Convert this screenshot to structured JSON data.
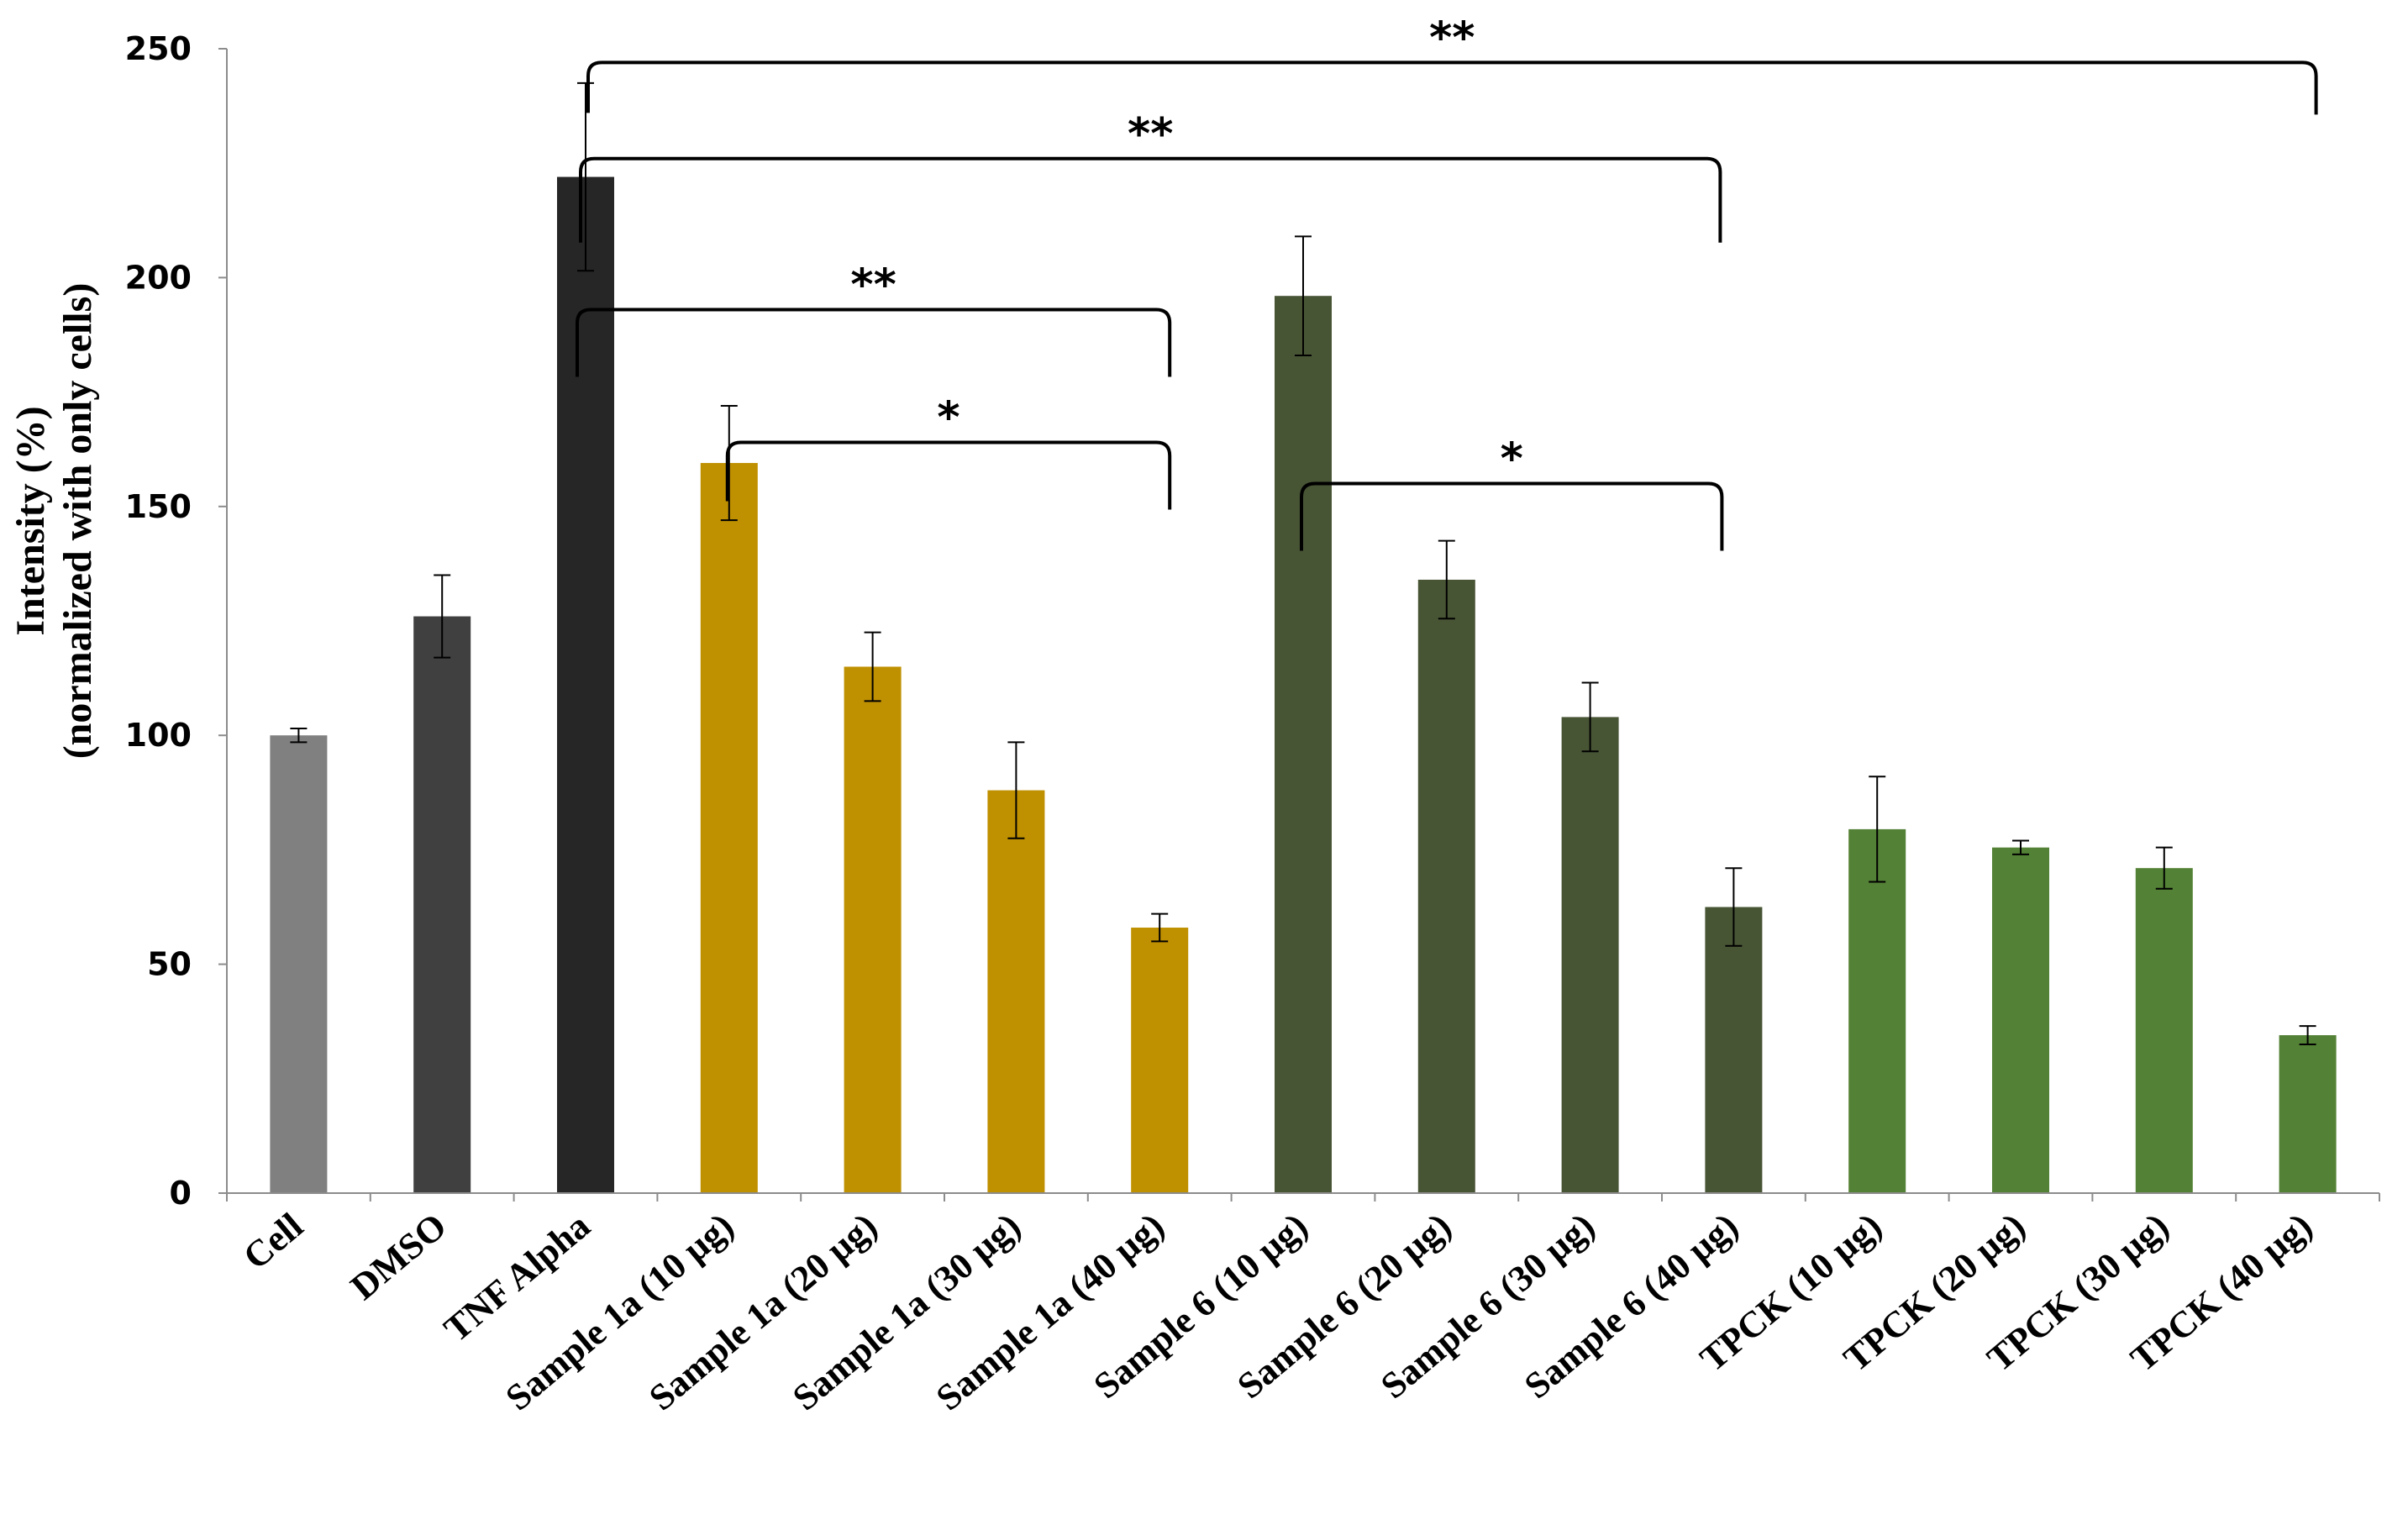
{
  "chart_data": {
    "type": "bar",
    "title": "",
    "xlabel": "",
    "ylabel": "Intensity (%)",
    "ylabel_sub": "(normalized with only cells)",
    "ylim": [
      0,
      250
    ],
    "yticks": [
      0,
      50,
      100,
      150,
      200,
      250
    ],
    "grid": false,
    "categories": [
      "Cell",
      "DMSO",
      "TNF Alpha",
      "Sample 1a (10 µg)",
      "Sample 1a (20 µg)",
      "Sample 1a (30 µg)",
      "Sample 1a (40 µg)",
      "Sample 6 (10 µg)",
      "Sample 6 (20 µg)",
      "Sample 6 (30 µg)",
      "Sample 6 (40 µg)",
      "TPCK (10 µg)",
      "TPCK (20 µg)",
      "TPCK (30 µg)",
      "TPCK (40 µg)"
    ],
    "values": [
      100,
      126,
      222,
      159.5,
      115,
      88,
      58,
      196,
      134,
      104,
      62.5,
      79.5,
      75.5,
      71,
      34.5
    ],
    "errors": [
      1.5,
      9,
      20.5,
      12.5,
      7.5,
      10.5,
      3,
      13,
      8.5,
      7.5,
      8.5,
      11.5,
      1.5,
      4.5,
      2
    ],
    "colors": [
      "#808080",
      "#404040",
      "#262626",
      "#bf9000",
      "#bf9000",
      "#bf9000",
      "#bf9000",
      "#485535",
      "#485535",
      "#485535",
      "#485535",
      "#538135",
      "#538135",
      "#538135",
      "#538135"
    ],
    "significance": [
      {
        "from": "TNF Alpha",
        "to": "TPCK (40 µg)",
        "label": "**",
        "top_value": 247
      },
      {
        "from": "TNF Alpha",
        "to": "Sample 6 (40 µg)",
        "label": "**",
        "top_value": 226
      },
      {
        "from": "TNF Alpha",
        "to": "Sample 1a (40 µg)",
        "label": "**",
        "top_value": 193
      },
      {
        "from": "Sample 1a (10 µg)",
        "to": "Sample 1a (40 µg)",
        "label": "*",
        "top_value": 164
      },
      {
        "from": "Sample 6 (10 µg)",
        "to": "Sample 6 (40 µg)",
        "label": "*",
        "top_value": 155
      }
    ]
  }
}
